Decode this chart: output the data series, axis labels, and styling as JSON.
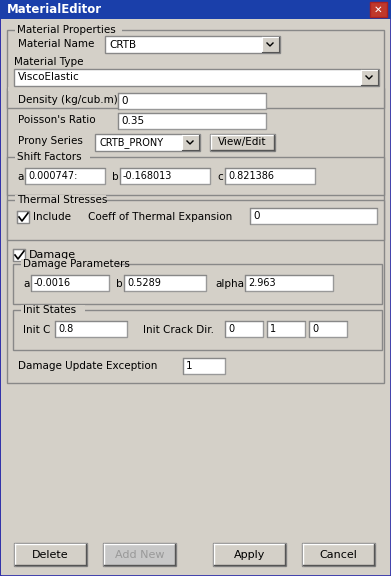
{
  "title": "MaterialEditor",
  "title_bar_color": "#1a3faa",
  "title_bar_text_color": "#ffffff",
  "close_btn_color": "#cc2222",
  "bg_color": "#d4d0c8",
  "white": "#ffffff",
  "section_title": "Material Properties",
  "mat_name_label": "Material Name",
  "mat_name_value": "CRTB",
  "mat_type_label": "Material Type",
  "mat_type_value": "ViscoElastic",
  "density_label": "Density (kg/cub.m)",
  "density_value": "0",
  "poisson_label": "Poisson's Ratio",
  "poisson_value": "0.35",
  "prony_label": "Prony Series",
  "prony_value": "CRTB_PRONY",
  "view_edit_label": "View/Edit",
  "shift_group": "Shift Factors",
  "shift_a_label": "a",
  "shift_a_value": "0.000747:",
  "shift_b_label": "b",
  "shift_b_value": "-0.168013",
  "shift_c_label": "c",
  "shift_c_value": "0.821386",
  "thermal_group": "Thermal Stresses",
  "thermal_include": "Include",
  "thermal_coeff_label": "Coeff of Thermal Expansion",
  "thermal_coeff_value": "0",
  "damage_checkbox": "Damage",
  "damage_group": "Damage Parameters",
  "dmg_a_label": "a",
  "dmg_a_value": "-0.0016",
  "dmg_b_label": "b",
  "dmg_b_value": "0.5289",
  "dmg_alpha_label": "alpha",
  "dmg_alpha_value": "2.963",
  "init_group": "Init States",
  "init_c_label": "Init C",
  "init_c_value": "0.8",
  "init_crack_label": "Init Crack Dir.",
  "init_crack_0": "0",
  "init_crack_1": "1",
  "init_crack_2": "0",
  "dmg_update_label": "Damage Update Exception",
  "dmg_update_value": "1",
  "btn_delete": "Delete",
  "btn_add_new": "Add New",
  "btn_apply": "Apply",
  "btn_cancel": "Cancel"
}
